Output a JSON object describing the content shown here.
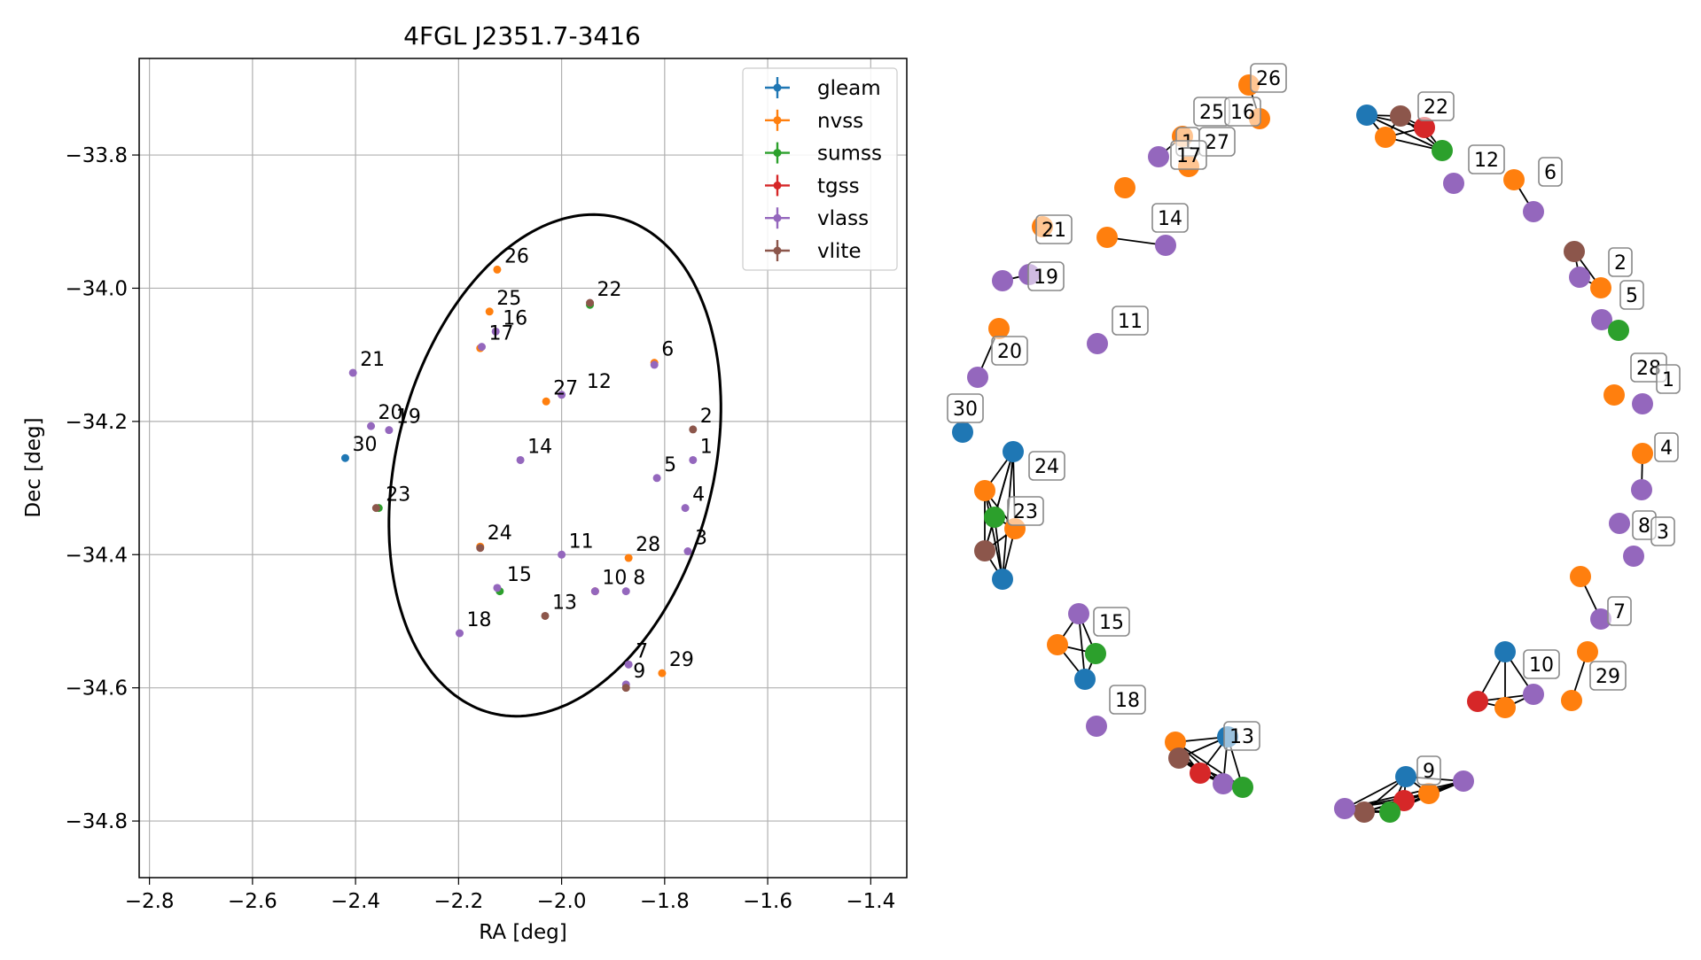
{
  "chart_data": [
    {
      "type": "scatter",
      "title": "4FGL J2351.7-3416",
      "xlabel": "RA [deg]",
      "ylabel": "Dec [deg]",
      "xlim": [
        -2.82,
        -1.33
      ],
      "ylim": [
        -34.885,
        -33.655
      ],
      "xticks": [
        -2.8,
        -2.6,
        -2.4,
        -2.2,
        -2.0,
        -1.8,
        -1.6,
        -1.4
      ],
      "xtick_labels": [
        "−2.8",
        "−2.6",
        "−2.4",
        "−2.2",
        "−2.0",
        "−1.8",
        "−1.6",
        "−1.4"
      ],
      "yticks": [
        -33.8,
        -34.0,
        -34.2,
        -34.4,
        -34.6,
        -34.8
      ],
      "ytick_labels": [
        "−33.8",
        "−34.0",
        "−34.2",
        "−34.4",
        "−34.6",
        "−34.8"
      ],
      "grid": true,
      "legend_position": "top-right",
      "ellipse": {
        "center": [
          -2.013,
          -34.266
        ],
        "semi_major_deg": 0.396,
        "semi_minor_deg": 0.298,
        "angle_deg": 62
      },
      "series": [
        {
          "name": "gleam",
          "color": "#1f77b4",
          "points": [
            [
              -2.42,
              -34.255
            ]
          ]
        },
        {
          "name": "nvss",
          "color": "#ff7f0e",
          "points": [
            [
              -2.125,
              -33.972
            ],
            [
              -2.14,
              -34.035
            ],
            [
              -2.03,
              -34.17
            ],
            [
              -2.158,
              -34.388
            ],
            [
              -1.87,
              -34.405
            ],
            [
              -1.805,
              -34.578
            ],
            [
              -2.158,
              -34.09
            ],
            [
              -1.82,
              -34.112
            ]
          ]
        },
        {
          "name": "sumss",
          "color": "#2ca02c",
          "points": [
            [
              -2.355,
              -34.33
            ],
            [
              -1.945,
              -34.025
            ],
            [
              -2.12,
              -34.455
            ]
          ]
        },
        {
          "name": "tgss",
          "color": "#d62728",
          "points": [
            [
              -1.935,
              -34.455
            ]
          ]
        },
        {
          "name": "vlass",
          "color": "#9467bd",
          "points": [
            [
              -2.405,
              -34.127
            ],
            [
              -2.37,
              -34.207
            ],
            [
              -2.335,
              -34.213
            ],
            [
              -2.08,
              -34.258
            ],
            [
              -2.0,
              -34.16
            ],
            [
              -2.128,
              -34.065
            ],
            [
              -2.155,
              -34.088
            ],
            [
              -1.82,
              -34.115
            ],
            [
              -1.745,
              -34.258
            ],
            [
              -1.815,
              -34.285
            ],
            [
              -1.76,
              -34.33
            ],
            [
              -1.755,
              -34.395
            ],
            [
              -2.0,
              -34.4
            ],
            [
              -1.875,
              -34.455
            ],
            [
              -1.935,
              -34.455
            ],
            [
              -2.125,
              -34.45
            ],
            [
              -2.198,
              -34.518
            ],
            [
              -1.87,
              -34.565
            ],
            [
              -1.875,
              -34.595
            ]
          ]
        },
        {
          "name": "vlite",
          "color": "#8c564b",
          "points": [
            [
              -1.745,
              -34.212
            ],
            [
              -1.945,
              -34.022
            ],
            [
              -2.36,
              -34.33
            ],
            [
              -2.158,
              -34.39
            ],
            [
              -2.032,
              -34.492
            ],
            [
              -1.875,
              -34.6
            ]
          ]
        }
      ],
      "point_labels": [
        {
          "text": "1",
          "x": -1.745,
          "y": -34.258
        },
        {
          "text": "2",
          "x": -1.745,
          "y": -34.212
        },
        {
          "text": "3",
          "x": -1.755,
          "y": -34.395
        },
        {
          "text": "4",
          "x": -1.76,
          "y": -34.33
        },
        {
          "text": "5",
          "x": -1.815,
          "y": -34.285
        },
        {
          "text": "6",
          "x": -1.82,
          "y": -34.112
        },
        {
          "text": "7",
          "x": -1.87,
          "y": -34.565
        },
        {
          "text": "8",
          "x": -1.875,
          "y": -34.455
        },
        {
          "text": "9",
          "x": -1.875,
          "y": -34.595
        },
        {
          "text": "10",
          "x": -1.935,
          "y": -34.455
        },
        {
          "text": "11",
          "x": -2.0,
          "y": -34.4
        },
        {
          "text": "12",
          "x": -1.965,
          "y": -34.16
        },
        {
          "text": "13",
          "x": -2.032,
          "y": -34.492
        },
        {
          "text": "14",
          "x": -2.08,
          "y": -34.258
        },
        {
          "text": "15",
          "x": -2.12,
          "y": -34.45
        },
        {
          "text": "16",
          "x": -2.128,
          "y": -34.065
        },
        {
          "text": "17",
          "x": -2.155,
          "y": -34.088
        },
        {
          "text": "18",
          "x": -2.198,
          "y": -34.518
        },
        {
          "text": "19",
          "x": -2.335,
          "y": -34.213
        },
        {
          "text": "20",
          "x": -2.37,
          "y": -34.207
        },
        {
          "text": "21",
          "x": -2.405,
          "y": -34.127
        },
        {
          "text": "22",
          "x": -1.945,
          "y": -34.022
        },
        {
          "text": "23",
          "x": -2.355,
          "y": -34.33
        },
        {
          "text": "24",
          "x": -2.158,
          "y": -34.388
        },
        {
          "text": "25",
          "x": -2.14,
          "y": -34.035
        },
        {
          "text": "26",
          "x": -2.125,
          "y": -33.972
        },
        {
          "text": "27",
          "x": -2.03,
          "y": -34.17
        },
        {
          "text": "28",
          "x": -1.87,
          "y": -34.405
        },
        {
          "text": "29",
          "x": -1.805,
          "y": -34.578
        },
        {
          "text": "30",
          "x": -2.42,
          "y": -34.255
        }
      ]
    },
    {
      "type": "network",
      "node_labels": [
        "1",
        "2",
        "3",
        "4",
        "5",
        "6",
        "7",
        "8",
        "9",
        "10",
        "11",
        "12",
        "13",
        "14",
        "15",
        "16",
        "17",
        "18",
        "19",
        "20",
        "21",
        "22",
        "23",
        "24",
        "25",
        "26",
        "27",
        "28",
        "29",
        "30"
      ],
      "groups": [
        {
          "label": "26",
          "nodes": [
            [
              "nvss",
              1409,
              96
            ],
            [
              "nvss",
              1421,
              134
            ]
          ]
        },
        {
          "label": "25",
          "nodes": [
            [
              "nvss",
              1334,
              154
            ],
            [
              "vlass",
              1307,
              177
            ]
          ]
        },
        {
          "label": "16",
          "nodes": []
        },
        {
          "label": "1",
          "nodes": []
        },
        {
          "label": "27",
          "nodes": [
            [
              "nvss",
              1341,
              188
            ]
          ]
        },
        {
          "label": "17",
          "nodes": [
            [
              "nvss",
              1269,
              212
            ]
          ]
        },
        {
          "label": "22",
          "nodes": [
            [
              "gleam",
              1542,
              130
            ],
            [
              "vlite",
              1580,
              131
            ],
            [
              "tgss",
              1607,
              144
            ],
            [
              "nvss",
              1563,
              155
            ],
            [
              "sumss",
              1627,
              170
            ]
          ]
        },
        {
          "label": "12",
          "nodes": [
            [
              "vlass",
              1640,
              207
            ]
          ]
        },
        {
          "label": "6",
          "nodes": [
            [
              "nvss",
              1708,
              203
            ],
            [
              "vlass",
              1730,
              239
            ]
          ]
        },
        {
          "label": "14",
          "nodes": [
            [
              "nvss",
              1249,
              268
            ],
            [
              "vlass",
              1315,
              277
            ]
          ]
        },
        {
          "label": "21",
          "nodes": [
            [
              "nvss",
              1176,
              256
            ]
          ]
        },
        {
          "label": "19",
          "nodes": [
            [
              "vlass",
              1131,
              317
            ],
            [
              "vlass",
              1161,
              310
            ]
          ]
        },
        {
          "label": "11",
          "nodes": [
            [
              "vlass",
              1238,
              388
            ]
          ]
        },
        {
          "label": "20",
          "nodes": [
            [
              "nvss",
              1127,
              371
            ],
            [
              "vlass",
              1103,
              426
            ]
          ]
        },
        {
          "label": "30",
          "nodes": [
            [
              "gleam",
              1086,
              488
            ]
          ]
        },
        {
          "label": "24",
          "nodes": [
            [
              "gleam",
              1143,
              510
            ],
            [
              "nvss",
              1111,
              554
            ],
            [
              "sumss",
              1122,
              584
            ],
            [
              "nvss",
              1145,
              597
            ],
            [
              "vlite",
              1111,
              622
            ],
            [
              "gleam",
              1131,
              654
            ]
          ]
        },
        {
          "label": "23",
          "nodes": []
        },
        {
          "label": "2",
          "nodes": [
            [
              "vlite",
              1776,
              284
            ],
            [
              "vlass",
              1782,
              313
            ],
            [
              "nvss",
              1806,
              325
            ]
          ]
        },
        {
          "label": "5",
          "nodes": [
            [
              "vlass",
              1807,
              361
            ],
            [
              "sumss",
              1826,
              373
            ]
          ]
        },
        {
          "label": "28",
          "nodes": [
            [
              "nvss",
              1821,
              446
            ]
          ]
        },
        {
          "label": "1",
          "nodes": [
            [
              "vlass",
              1853,
              456
            ]
          ]
        },
        {
          "label": "4",
          "nodes": [
            [
              "nvss",
              1853,
              512
            ],
            [
              "vlass",
              1852,
              553
            ]
          ]
        },
        {
          "label": "8",
          "nodes": [
            [
              "vlass",
              1827,
              591
            ]
          ]
        },
        {
          "label": "3",
          "nodes": [
            [
              "vlass",
              1843,
              628
            ]
          ]
        },
        {
          "label": "7",
          "nodes": [
            [
              "nvss",
              1783,
              651
            ],
            [
              "vlass",
              1806,
              699
            ]
          ]
        },
        {
          "label": "29",
          "nodes": [
            [
              "nvss",
              1791,
              736
            ],
            [
              "nvss",
              1773,
              791
            ]
          ]
        },
        {
          "label": "10",
          "nodes": [
            [
              "gleam",
              1698,
              736
            ],
            [
              "tgss",
              1667,
              792
            ],
            [
              "nvss",
              1698,
              799
            ],
            [
              "vlass",
              1730,
              784
            ]
          ]
        },
        {
          "label": "15",
          "nodes": [
            [
              "vlass",
              1217,
              693
            ],
            [
              "nvss",
              1193,
              728
            ],
            [
              "sumss",
              1236,
              738
            ],
            [
              "gleam",
              1224,
              767
            ]
          ]
        },
        {
          "label": "18",
          "nodes": [
            [
              "vlass",
              1237,
              820
            ]
          ]
        },
        {
          "label": "13",
          "nodes": [
            [
              "nvss",
              1326,
              838
            ],
            [
              "gleam",
              1385,
              832
            ],
            [
              "vlite",
              1330,
              856
            ],
            [
              "tgss",
              1354,
              873
            ],
            [
              "vlass",
              1380,
              885
            ],
            [
              "sumss",
              1402,
              889
            ]
          ]
        },
        {
          "label": "9",
          "nodes": [
            [
              "gleam",
              1586,
              877
            ],
            [
              "vlass",
              1651,
              882
            ],
            [
              "nvss",
              1612,
              896
            ],
            [
              "tgss",
              1584,
              904
            ],
            [
              "sumss",
              1568,
              917
            ],
            [
              "vlite",
              1539,
              917
            ],
            [
              "vlass",
              1517,
              913
            ]
          ]
        }
      ]
    }
  ]
}
